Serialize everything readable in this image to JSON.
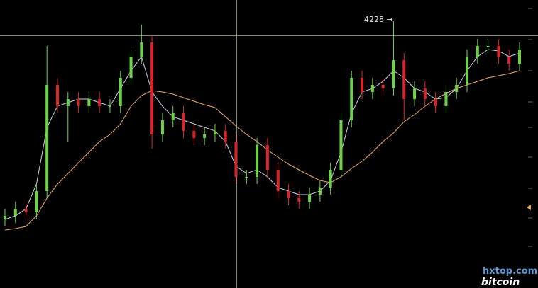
{
  "chart_data": {
    "type": "candlestick",
    "annotation": "4228 →",
    "watermark": [
      "hxtop.com",
      "bitcoin"
    ],
    "up_color": "#6fd34a",
    "down_color": "#d8262b",
    "ylim": [
      2343,
      4378
    ],
    "open": [
      2828,
      2853,
      2903,
      2878,
      3028,
      3778,
      3628,
      3678,
      3628,
      3678,
      3628,
      3628,
      3828,
      3978,
      4078,
      3428,
      3528,
      3578,
      3453,
      3403,
      3428,
      3453,
      3378,
      3128,
      3128,
      3353,
      3178,
      3028,
      2978,
      2953,
      3003,
      3053,
      3178,
      3528,
      3828,
      3728,
      3778,
      3753,
      3953,
      3678,
      3753,
      3678,
      3628,
      3728,
      3778,
      3978,
      4053,
      4053,
      3978,
      3928
    ],
    "high": [
      2903,
      2953,
      2953,
      3078,
      4053,
      3828,
      3728,
      3728,
      3728,
      3728,
      3678,
      3878,
      4028,
      4203,
      4128,
      3578,
      3628,
      3628,
      3503,
      3478,
      3503,
      3503,
      3428,
      3178,
      3403,
      3403,
      3228,
      3078,
      3028,
      3053,
      3103,
      3228,
      3578,
      3878,
      3878,
      3828,
      3828,
      4228,
      4003,
      3803,
      3803,
      3728,
      3778,
      3828,
      4028,
      4103,
      4103,
      4103,
      4028,
      4078
    ],
    "low": [
      2778,
      2803,
      2828,
      2828,
      2978,
      3578,
      3378,
      3578,
      3578,
      3578,
      3578,
      3578,
      3778,
      3928,
      3328,
      3378,
      3478,
      3403,
      3353,
      3353,
      3378,
      3328,
      3078,
      3078,
      3078,
      3128,
      2978,
      2928,
      2903,
      2903,
      2953,
      3003,
      3128,
      3478,
      3678,
      3678,
      3703,
      3703,
      3528,
      3628,
      3628,
      3578,
      3578,
      3678,
      3728,
      3928,
      4003,
      3928,
      3878,
      3878
    ],
    "close": [
      2853,
      2903,
      2878,
      3028,
      3778,
      3628,
      3678,
      3628,
      3678,
      3628,
      3628,
      3828,
      3978,
      4078,
      3428,
      3528,
      3578,
      3453,
      3403,
      3428,
      3453,
      3378,
      3128,
      3128,
      3353,
      3178,
      3028,
      2978,
      2953,
      3003,
      3053,
      3178,
      3528,
      3828,
      3728,
      3778,
      3753,
      3953,
      3678,
      3753,
      3678,
      3628,
      3728,
      3778,
      3978,
      4053,
      4053,
      3978,
      3928,
      4028
    ],
    "lines": [
      {
        "color": "#c9d4ea",
        "values": [
          2828,
          2853,
          2903,
          3078,
          3478,
          3628,
          3653,
          3678,
          3678,
          3653,
          3628,
          3753,
          3878,
          3978,
          3728,
          3628,
          3553,
          3528,
          3503,
          3478,
          3453,
          3378,
          3203,
          3153,
          3178,
          3128,
          3053,
          3028,
          3003,
          3003,
          3028,
          3103,
          3303,
          3578,
          3728,
          3753,
          3803,
          3878,
          3828,
          3753,
          3728,
          3678,
          3688,
          3753,
          3878,
          3978,
          4028,
          4018,
          3978,
          4003
        ]
      },
      {
        "color": "#f0ac5e",
        "values": [
          2753,
          2763,
          2778,
          2853,
          2978,
          3078,
          3153,
          3228,
          3303,
          3378,
          3428,
          3503,
          3628,
          3703,
          3738,
          3728,
          3713,
          3688,
          3663,
          3638,
          3618,
          3553,
          3488,
          3428,
          3378,
          3318,
          3268,
          3218,
          3178,
          3138,
          3103,
          3088,
          3128,
          3188,
          3238,
          3303,
          3378,
          3438,
          3518,
          3568,
          3628,
          3678,
          3718,
          3753,
          3778,
          3803,
          3828,
          3843,
          3858,
          3878
        ]
      }
    ]
  }
}
